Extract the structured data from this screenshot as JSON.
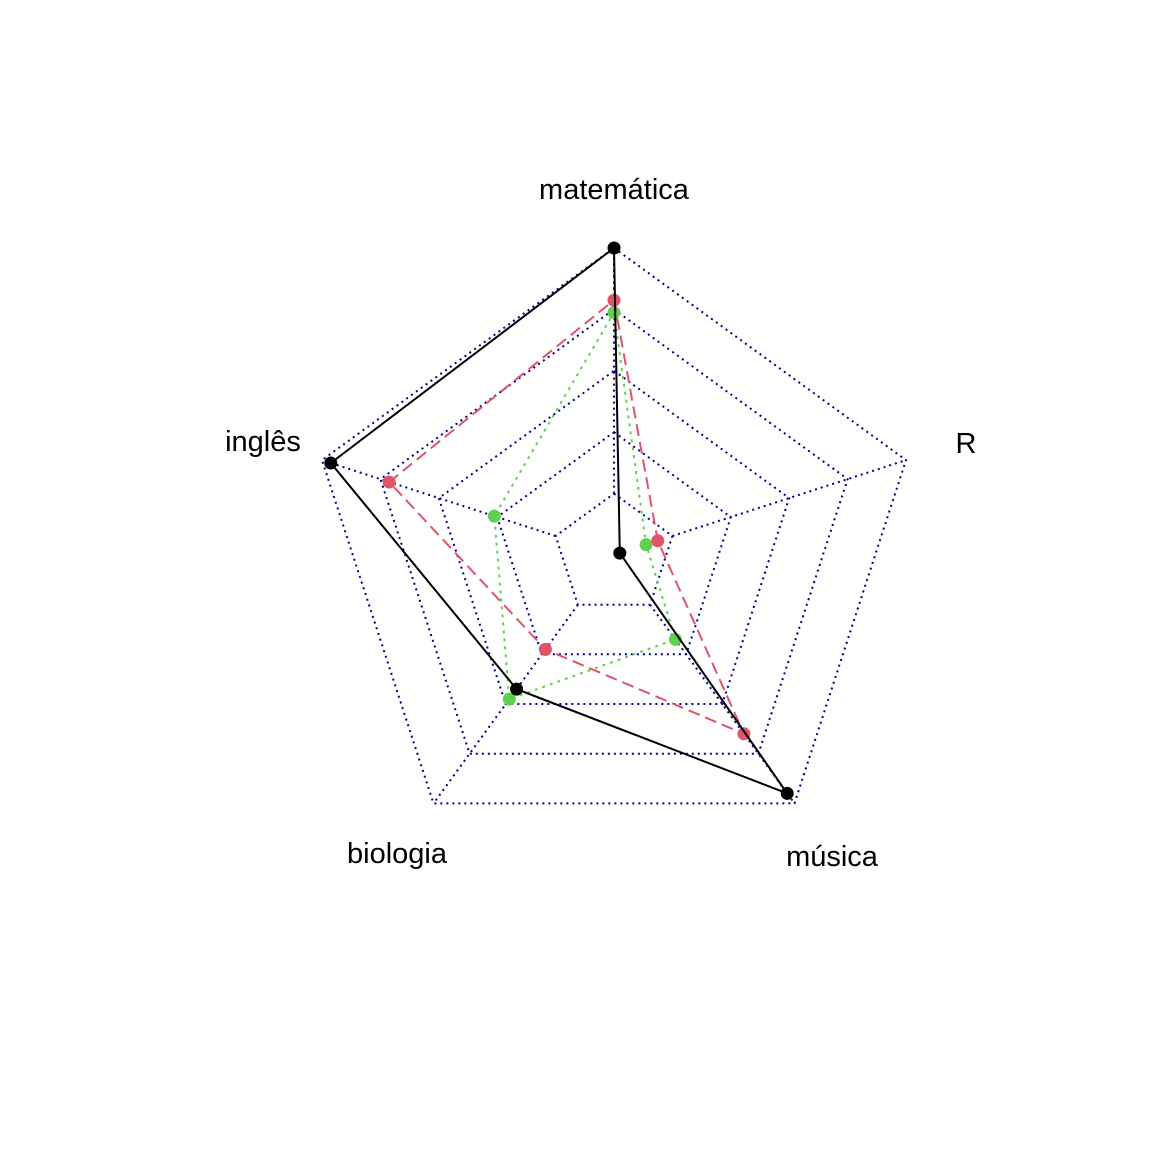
{
  "chart_data": {
    "type": "radar",
    "axes": [
      "matemática",
      "R",
      "música",
      "biologia",
      "inglês"
    ],
    "scale": [
      0,
      1
    ],
    "grid_levels": [
      0.2,
      0.4,
      0.6,
      0.8,
      1.0
    ],
    "grid": true,
    "legend": "none",
    "series": [
      {
        "values": [
          1.0,
          0.02,
          0.96,
          0.54,
          0.97
        ],
        "color": "#000000",
        "line_style": "solid"
      },
      {
        "values": [
          0.83,
          0.15,
          0.72,
          0.38,
          0.77
        ],
        "color": "#DF536B",
        "line_style": "dashed"
      },
      {
        "values": [
          0.79,
          0.11,
          0.34,
          0.58,
          0.41
        ],
        "color": "#61D04F",
        "line_style": "dotted"
      }
    ],
    "grid_color": "#00008B"
  }
}
